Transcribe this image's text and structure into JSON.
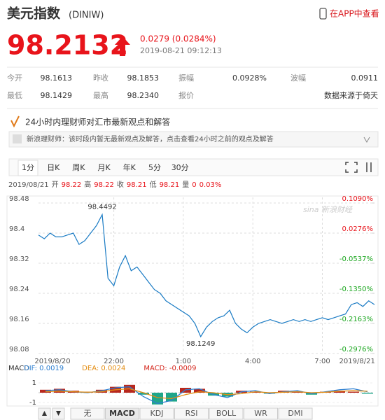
{
  "header": {
    "title": "美元指数",
    "code": "(DINIW)",
    "app_link": "在APP中查看"
  },
  "quote": {
    "price": "98.2132",
    "change": "0.0279 (0.0284%)",
    "time": "2019-08-21 09:12:13"
  },
  "stats": {
    "rows": [
      [
        {
          "label": "今开",
          "value": "98.1613"
        },
        {
          "label": "昨收",
          "value": "98.1853"
        },
        {
          "label": "振幅",
          "value": "0.0928%"
        },
        {
          "label": "波幅",
          "value": "0.0911"
        }
      ],
      [
        {
          "label": "最低",
          "value": "98.1429"
        },
        {
          "label": "最高",
          "value": "98.2340"
        },
        {
          "label": "报价"
        }
      ]
    ],
    "source": "数据来源于倚天"
  },
  "banner": {
    "title": "24小时内理财师对汇市最新观点和解答",
    "message": "新浪理财师：该时段内暂无最新观点及解答，点击查看24小时之前的观点及解答"
  },
  "period_tabs": [
    "1分",
    "日K",
    "周K",
    "月K",
    "年K",
    "5分",
    "30分"
  ],
  "active_period": "1分",
  "info_bar": {
    "date": "2019/08/21",
    "items": [
      {
        "label": "开",
        "value": "98.22"
      },
      {
        "label": "高",
        "value": "98.22"
      },
      {
        "label": "收",
        "value": "98.21"
      },
      {
        "label": "低",
        "value": "98.21"
      },
      {
        "label": "量",
        "value": "0"
      }
    ],
    "change": "0.03%"
  },
  "chart_data": [
    {
      "type": "line",
      "watermark": "sina 新浪财经",
      "categories": [
        "2019/8/20",
        null,
        null,
        null,
        null,
        null,
        null,
        null,
        null,
        null,
        null,
        null,
        null,
        "22:00",
        null,
        null,
        null,
        null,
        null,
        null,
        null,
        null,
        null,
        null,
        null,
        "1:00",
        null,
        null,
        null,
        null,
        null,
        null,
        null,
        null,
        null,
        null,
        null,
        "4:00",
        null,
        null,
        null,
        null,
        null,
        null,
        null,
        null,
        null,
        null,
        null,
        "7:00",
        null,
        null,
        null,
        null,
        null,
        "2019/8/21",
        null,
        null,
        null
      ],
      "values": [
        98.395,
        98.385,
        98.4,
        98.39,
        98.39,
        98.395,
        98.4,
        98.37,
        98.38,
        98.4,
        98.42,
        98.4492,
        98.28,
        98.26,
        98.31,
        98.34,
        98.3,
        98.31,
        98.29,
        98.27,
        98.25,
        98.24,
        98.22,
        98.21,
        98.2,
        98.19,
        98.18,
        98.16,
        98.1249,
        98.15,
        98.165,
        98.175,
        98.18,
        98.195,
        98.16,
        98.145,
        98.135,
        98.15,
        98.16,
        98.165,
        98.17,
        98.165,
        98.16,
        98.165,
        98.17,
        98.165,
        98.17,
        98.165,
        98.17,
        98.175,
        98.17,
        98.175,
        98.18,
        98.185,
        98.21,
        98.215,
        98.205,
        98.22,
        98.21
      ],
      "color": "#1a7bc4",
      "ylim": [
        98.08,
        98.48
      ],
      "yticks": [
        98.48,
        98.4,
        98.32,
        98.24,
        98.16,
        98.08
      ],
      "y2lim": [
        -0.2976,
        0.109
      ],
      "y2ticks": [
        {
          "value": 0.109,
          "label": "0.1090%"
        },
        {
          "value": 0.0276,
          "label": "0.0276%"
        },
        {
          "value": -0.0537,
          "label": "-0.0537%"
        },
        {
          "value": -0.135,
          "label": "-0.1350%"
        },
        {
          "value": -0.2163,
          "label": "-0.2163%"
        },
        {
          "value": -0.2976,
          "label": "-0.2976%"
        }
      ],
      "annotations": [
        {
          "value": 98.4492,
          "label": "98.4492"
        },
        {
          "value": 98.1249,
          "label": "98.1249"
        }
      ],
      "grid": true,
      "positive_color": "#e8141b",
      "negative_color": "#18a51c"
    },
    {
      "type": "macd",
      "title": "MACD",
      "series": [
        {
          "name": "DIF: 0.0019",
          "color": "#2e7fd0",
          "values": [
            0.2,
            0.3,
            0.1,
            0.0,
            0.2,
            0.5,
            0.6,
            -0.4,
            -1.1,
            -0.8,
            0.3,
            0.4,
            -0.2,
            -0.5,
            0.1,
            0.2,
            -0.1,
            0.1,
            0.2,
            -0.1,
            0.1,
            0.3,
            0.4,
            0.1
          ]
        },
        {
          "name": "DEA: 0.0024",
          "color": "#e38d13",
          "values": [
            0.1,
            0.15,
            0.1,
            0.05,
            0.1,
            0.3,
            0.4,
            0.0,
            -0.5,
            -0.6,
            -0.2,
            0.1,
            0.0,
            -0.2,
            -0.1,
            0.1,
            0.0,
            0.05,
            0.1,
            0.0,
            0.05,
            0.15,
            0.2,
            0.15
          ]
        },
        {
          "name": "MACD: -0.0009",
          "color": "#d4261c",
          "values": [
            0.3,
            0.4,
            0.2,
            0.1,
            0.3,
            0.6,
            0.8,
            -0.2,
            -1.2,
            -0.9,
            0.5,
            0.4,
            -0.3,
            -0.4,
            0.2,
            0.1,
            -0.1,
            0.2,
            0.1,
            -0.2,
            0.1,
            0.2,
            0.1,
            -0.1
          ]
        }
      ],
      "ylim": [
        -1.5,
        1.5
      ],
      "yticks": [
        1,
        -1
      ],
      "positive_color": "#b8281e",
      "negative_color": "#1fa68a"
    }
  ],
  "indicator_tabs": [
    "无",
    "MACD",
    "KDJ",
    "RSI",
    "BOLL",
    "WR",
    "DMI"
  ],
  "active_indicator": "MACD"
}
